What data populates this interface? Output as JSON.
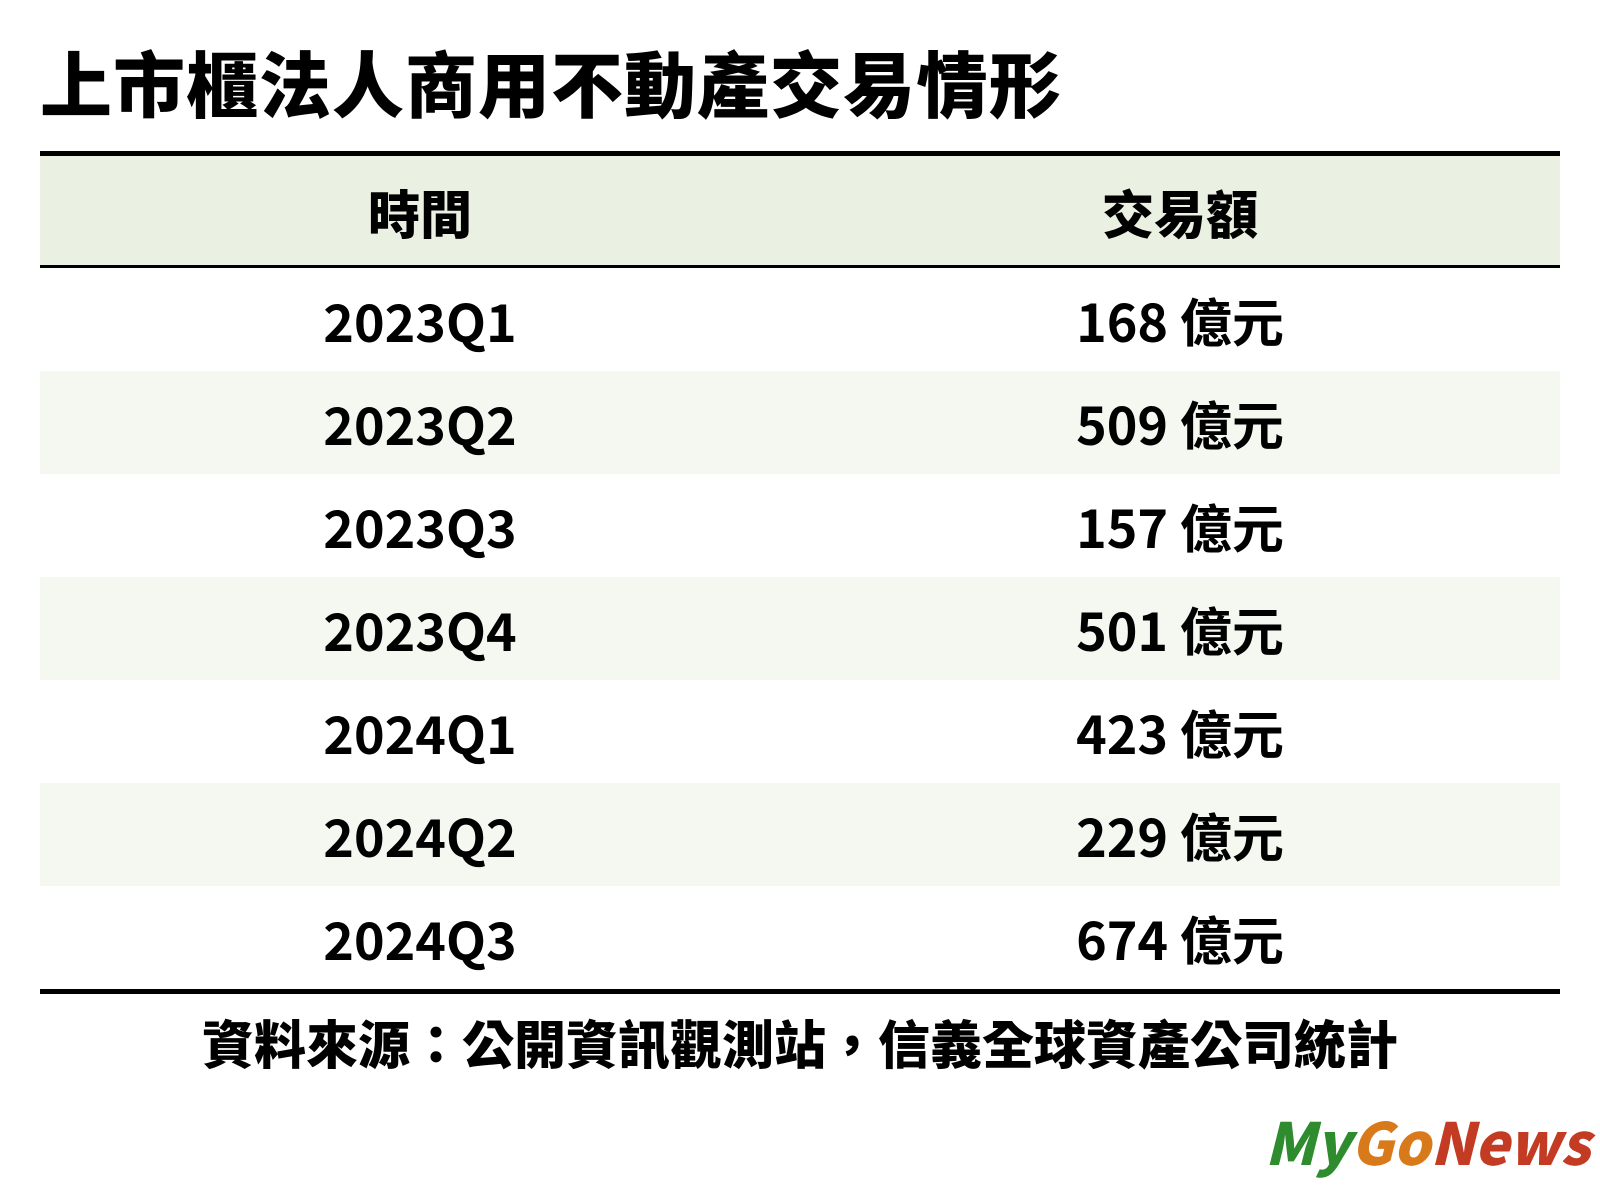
{
  "title": "上市櫃法人商用不動產交易情形",
  "table": {
    "type": "table",
    "header_bg": "#eaf1e3",
    "row_odd_bg": "#ffffff",
    "row_even_bg": "#f5f8f1",
    "border_color": "#000000",
    "text_color": "#000000",
    "header_fontsize": 52,
    "cell_fontsize": 52,
    "columns": [
      "時間",
      "交易額"
    ],
    "rows": [
      {
        "period": "2023Q1",
        "value": 168,
        "unit": "億元"
      },
      {
        "period": "2023Q2",
        "value": 509,
        "unit": "億元"
      },
      {
        "period": "2023Q3",
        "value": 157,
        "unit": "億元"
      },
      {
        "period": "2023Q4",
        "value": 501,
        "unit": "億元"
      },
      {
        "period": "2024Q1",
        "value": 423,
        "unit": "億元"
      },
      {
        "period": "2024Q2",
        "value": 229,
        "unit": "億元"
      },
      {
        "period": "2024Q3",
        "value": 674,
        "unit": "億元"
      }
    ]
  },
  "source_label": "資料來源：公開資訊觀測站，信義全球資產公司統計",
  "watermark": {
    "segments": {
      "my": "My",
      "go": "Go",
      "news": "News"
    },
    "colors": {
      "my": "#2e8b2e",
      "go": "#d97a1a",
      "news": "#c23b22"
    }
  }
}
